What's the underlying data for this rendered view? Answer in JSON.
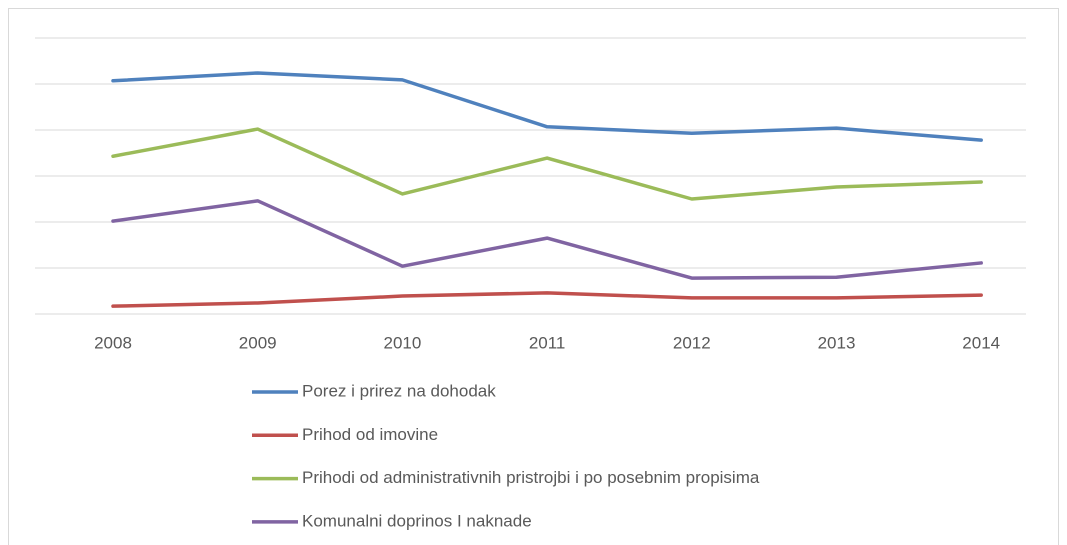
{
  "chart_data": {
    "type": "line",
    "categories": [
      "2008",
      "2009",
      "2010",
      "2011",
      "2012",
      "2013",
      "2014"
    ],
    "series": [
      {
        "name": "Porez i prirez na dohodak",
        "color": "#4f81bd",
        "values": [
          5.07,
          5.24,
          5.09,
          4.07,
          3.93,
          4.04,
          3.78
        ]
      },
      {
        "name": "Prihod od imovine",
        "color": "#c0504d",
        "values": [
          0.17,
          0.24,
          0.39,
          0.46,
          0.35,
          0.35,
          0.41
        ]
      },
      {
        "name": "Prihodi od administrativnih pristrojbi i po posebnim propisima",
        "color": "#9bbb59",
        "values": [
          3.43,
          4.02,
          2.61,
          3.39,
          2.5,
          2.76,
          2.87
        ]
      },
      {
        "name": "Komunalni doprinos I naknade",
        "color": "#8064a2",
        "values": [
          2.02,
          2.46,
          1.04,
          1.65,
          0.78,
          0.8,
          1.11
        ]
      }
    ],
    "ylim": [
      0,
      6
    ],
    "yticks": [
      0,
      1,
      2,
      3,
      4,
      5,
      6
    ],
    "grid": true,
    "legend": "bottom"
  }
}
